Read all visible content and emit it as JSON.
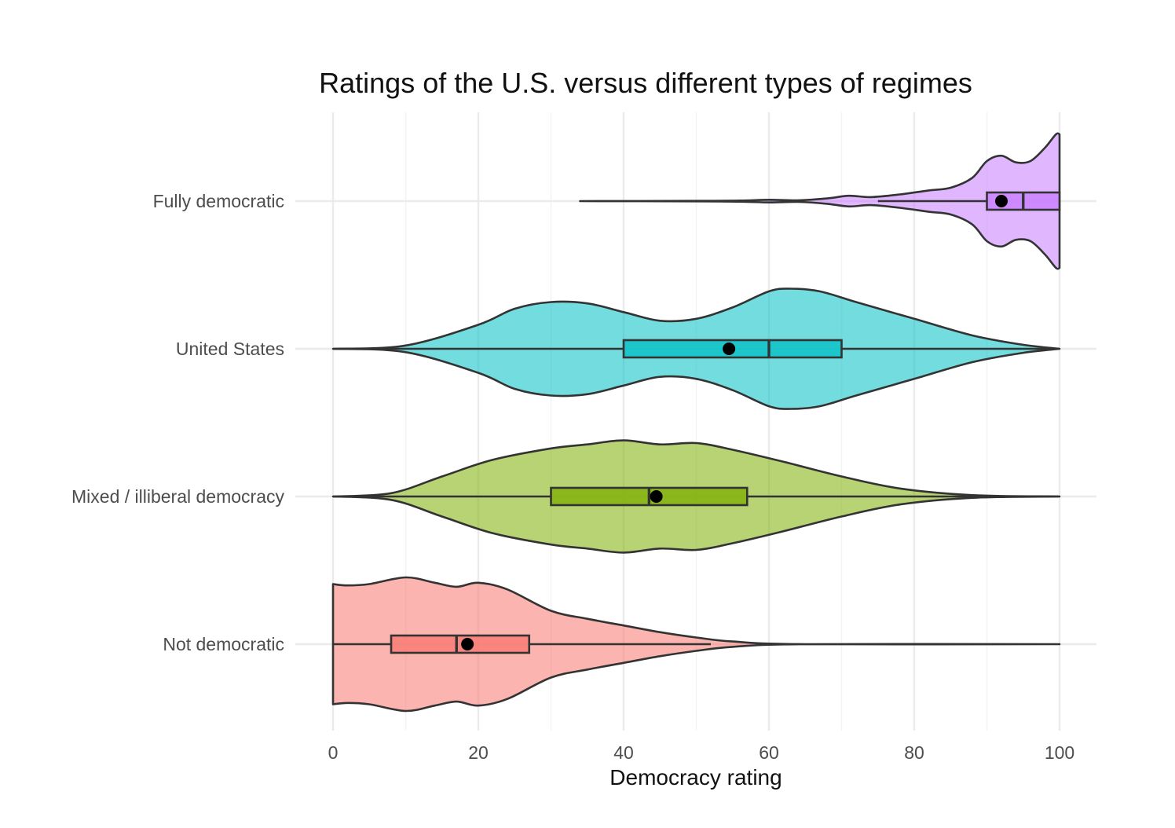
{
  "chart_data": {
    "type": "violin",
    "title": "Ratings of the U.S. versus different types of regimes",
    "xlabel": "Democracy rating",
    "ylabel": "",
    "xlim": [
      0,
      100
    ],
    "x_ticks": [
      0,
      20,
      40,
      60,
      80,
      100
    ],
    "grid": true,
    "legend": "none",
    "categories": [
      {
        "name": "Fully democratic",
        "color": "#c77cff",
        "min": 34,
        "q1": 90,
        "median": 95,
        "q3": 100,
        "max": 100,
        "whisker_low": 75,
        "whisker_high": 100,
        "mean": 92,
        "density": [
          [
            34,
            0.0
          ],
          [
            50,
            0.003
          ],
          [
            56,
            0.008
          ],
          [
            60,
            0.02
          ],
          [
            64,
            0.012
          ],
          [
            68,
            0.04
          ],
          [
            71,
            0.08
          ],
          [
            74,
            0.06
          ],
          [
            78,
            0.1
          ],
          [
            82,
            0.16
          ],
          [
            85,
            0.2
          ],
          [
            88,
            0.35
          ],
          [
            90,
            0.6
          ],
          [
            92,
            0.68
          ],
          [
            94,
            0.58
          ],
          [
            96,
            0.6
          ],
          [
            98,
            0.8
          ],
          [
            99.5,
            1.0
          ],
          [
            100,
            1.0
          ]
        ]
      },
      {
        "name": "United States",
        "color": "#00bfc4",
        "min": 0,
        "q1": 40,
        "median": 60,
        "q3": 70,
        "max": 100,
        "whisker_low": 0,
        "whisker_high": 100,
        "mean": 54.5,
        "density": [
          [
            0,
            0.0
          ],
          [
            10,
            0.05
          ],
          [
            20,
            0.36
          ],
          [
            25,
            0.6
          ],
          [
            30,
            0.7
          ],
          [
            35,
            0.68
          ],
          [
            40,
            0.55
          ],
          [
            45,
            0.42
          ],
          [
            50,
            0.45
          ],
          [
            55,
            0.62
          ],
          [
            60,
            0.86
          ],
          [
            63,
            0.9
          ],
          [
            67,
            0.86
          ],
          [
            72,
            0.7
          ],
          [
            80,
            0.45
          ],
          [
            88,
            0.2
          ],
          [
            95,
            0.06
          ],
          [
            100,
            0.0
          ]
        ]
      },
      {
        "name": "Mixed / illiberal democracy",
        "color": "#7cae00",
        "min": 0,
        "q1": 30,
        "median": 43.5,
        "q3": 57,
        "max": 100,
        "whisker_low": 0,
        "whisker_high": 100,
        "mean": 44.5,
        "density": [
          [
            0,
            0.0
          ],
          [
            8,
            0.05
          ],
          [
            15,
            0.3
          ],
          [
            22,
            0.55
          ],
          [
            30,
            0.72
          ],
          [
            35,
            0.78
          ],
          [
            40,
            0.84
          ],
          [
            45,
            0.78
          ],
          [
            50,
            0.8
          ],
          [
            55,
            0.7
          ],
          [
            62,
            0.52
          ],
          [
            70,
            0.3
          ],
          [
            78,
            0.12
          ],
          [
            88,
            0.02
          ],
          [
            100,
            0.0
          ]
        ]
      },
      {
        "name": "Not democratic",
        "color": "#f8766d",
        "min": 0,
        "q1": 8,
        "median": 17,
        "q3": 27,
        "max": 100,
        "whisker_low": 0,
        "whisker_high": 52,
        "mean": 18.5,
        "density": [
          [
            0,
            0.9
          ],
          [
            2,
            0.88
          ],
          [
            5,
            0.9
          ],
          [
            10,
            1.0
          ],
          [
            14,
            0.92
          ],
          [
            17,
            0.86
          ],
          [
            20,
            0.92
          ],
          [
            24,
            0.82
          ],
          [
            30,
            0.5
          ],
          [
            35,
            0.38
          ],
          [
            40,
            0.28
          ],
          [
            45,
            0.18
          ],
          [
            50,
            0.1
          ],
          [
            55,
            0.04
          ],
          [
            65,
            0.0
          ],
          [
            100,
            0.0
          ]
        ]
      }
    ]
  }
}
